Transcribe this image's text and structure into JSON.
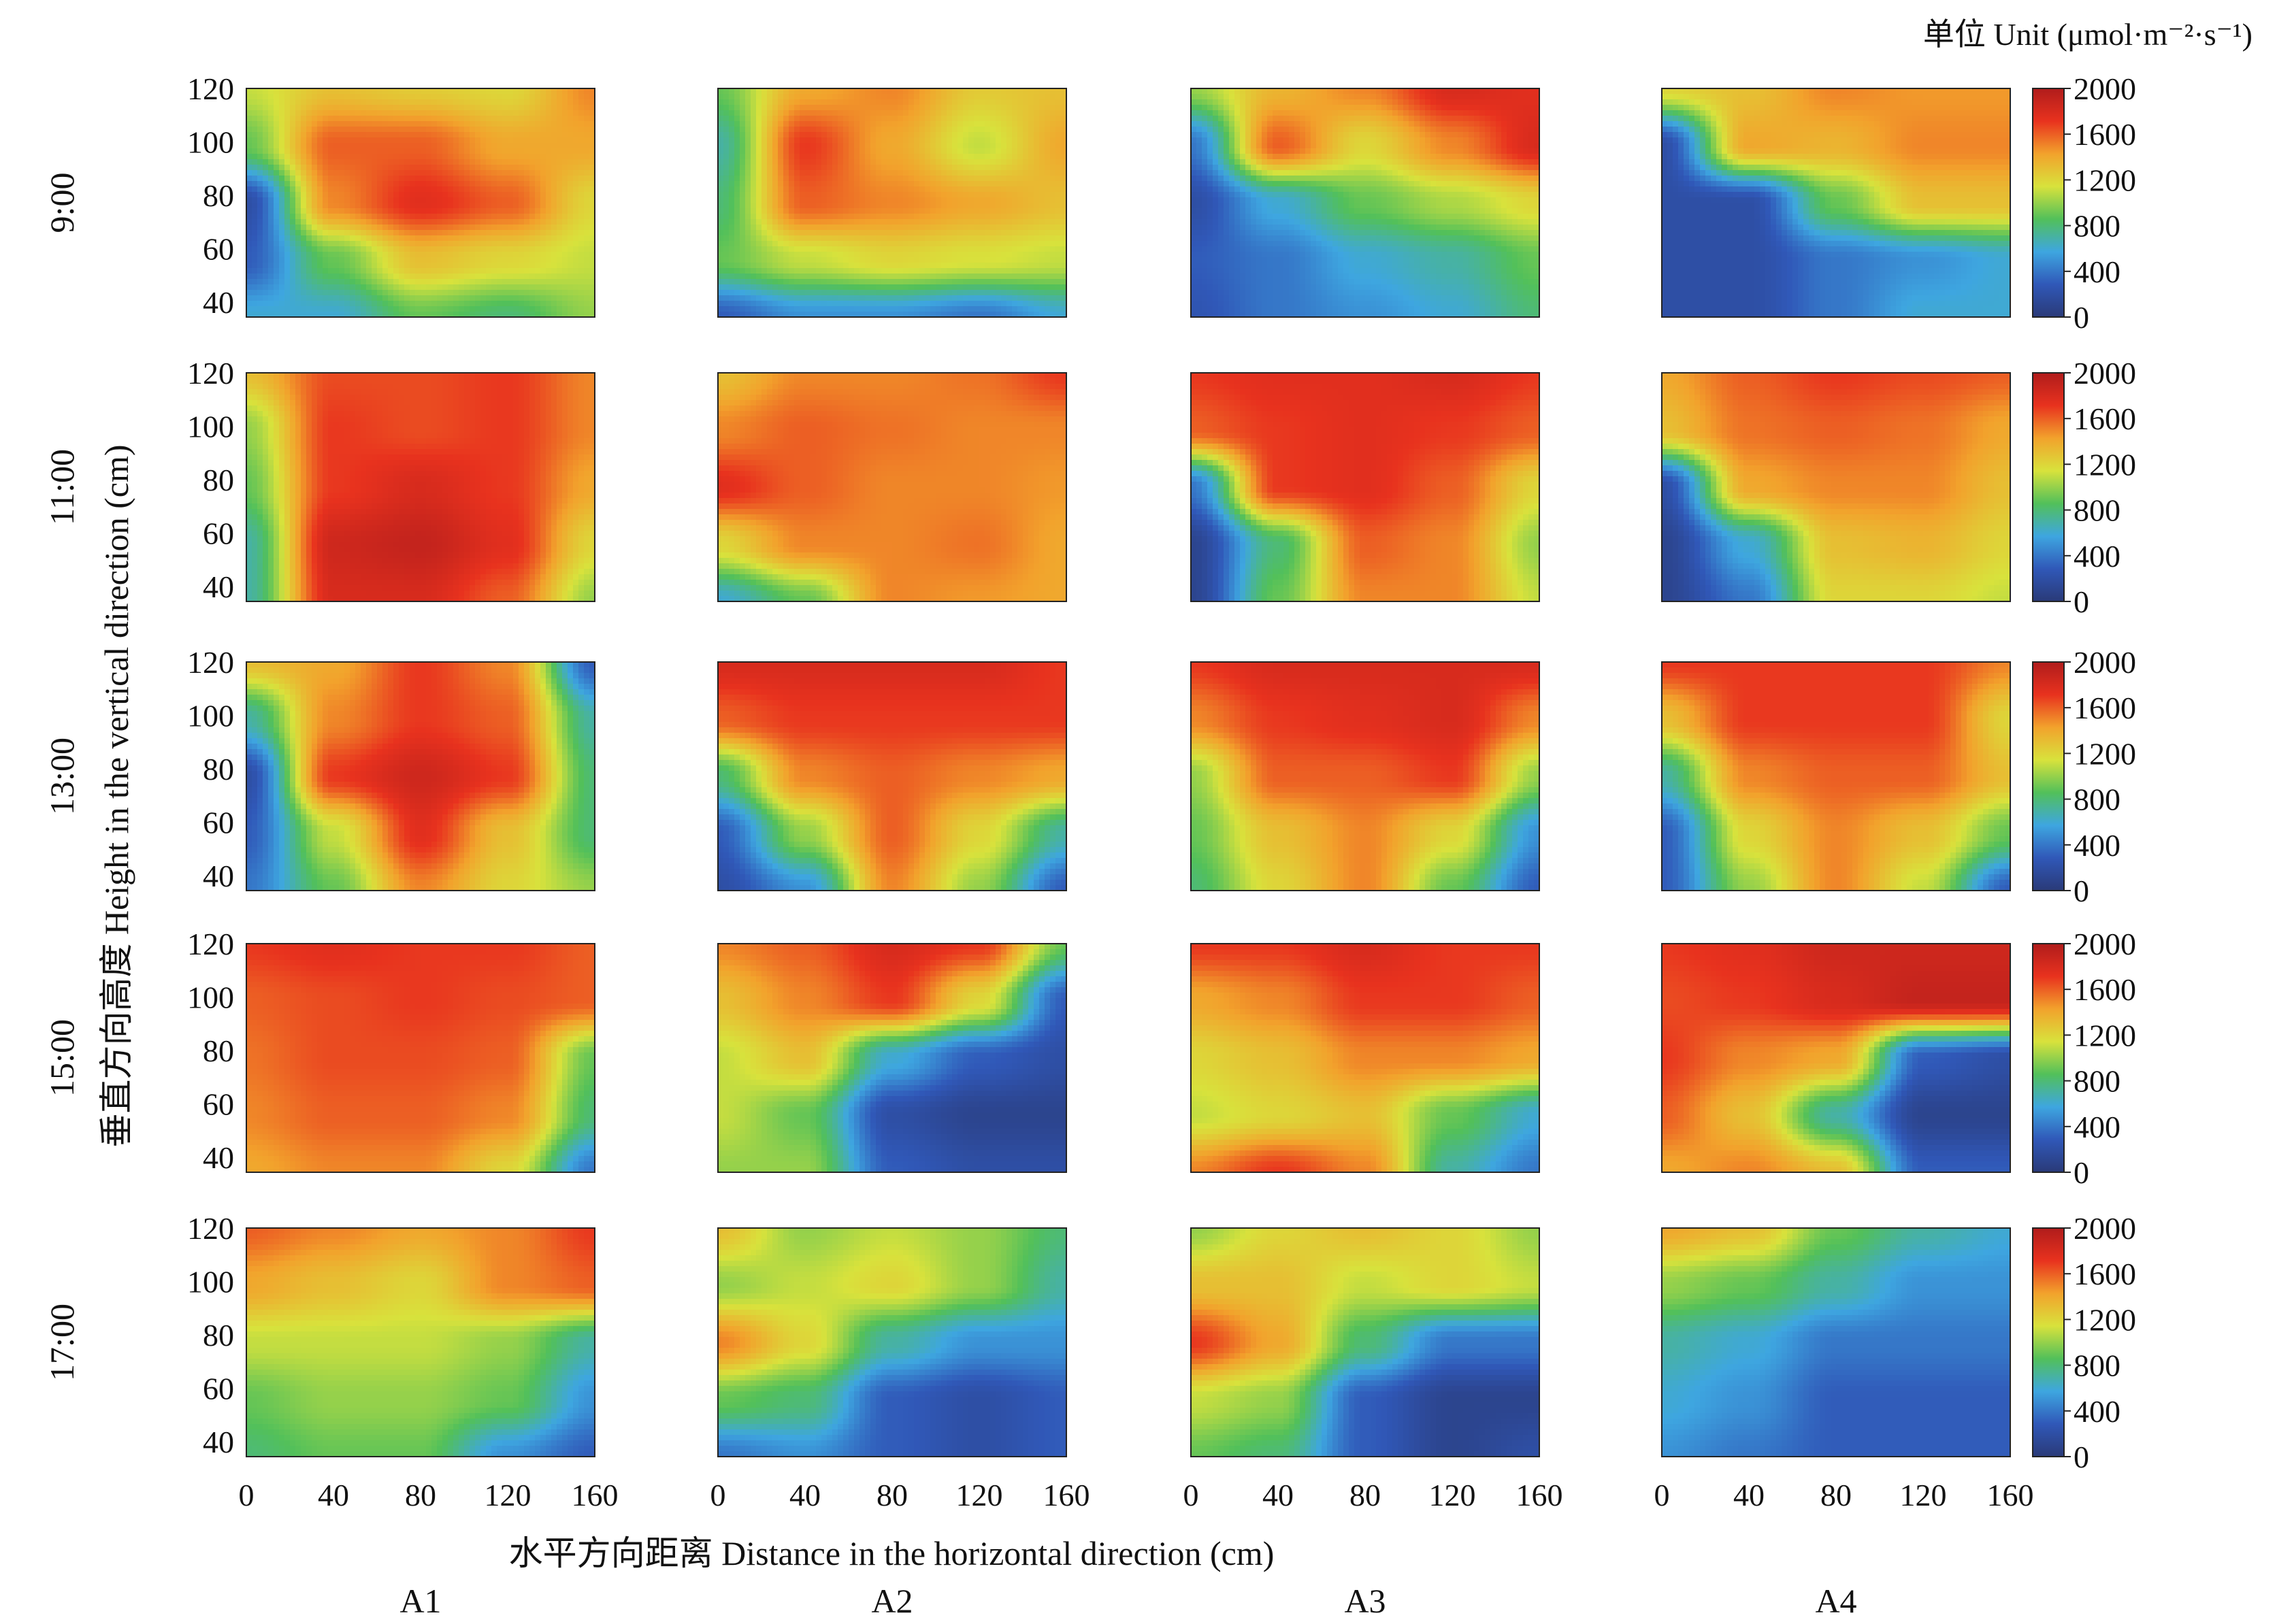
{
  "chart_data": {
    "type": "heatmap",
    "unit": "单位 Unit (μmol·m⁻²·s⁻¹)",
    "xlabel": "水平方向距离 Distance in the horizontal direction (cm)",
    "ylabel": "垂直方向高度 Height in the vertical direction (cm)",
    "x_ticks": [
      "0",
      "40",
      "80",
      "120",
      "160"
    ],
    "y_ticks": [
      "120",
      "100",
      "80",
      "60",
      "40"
    ],
    "xlim": [
      0,
      160
    ],
    "ylim": [
      36,
      120
    ],
    "colorbar_ticks": [
      "2000",
      "1600",
      "1200",
      "800",
      "400",
      "0"
    ],
    "colorbar_range": [
      0,
      2000
    ],
    "colorbar_colors": [
      "#2a3a78",
      "#3058b8",
      "#3ea6e0",
      "#52c05a",
      "#d8e23c",
      "#f2a22c",
      "#e8321e",
      "#b01c1c"
    ],
    "columns": [
      "A1",
      "A2",
      "A3",
      "A4"
    ],
    "rows": [
      "9:00",
      "11:00",
      "13:00",
      "15:00",
      "17:00"
    ],
    "grid_x": [
      0,
      40,
      80,
      120,
      160
    ],
    "grid_y": [
      120,
      100,
      80,
      60,
      40
    ],
    "panels": [
      [
        {
          "values": [
            [
              1100,
              1300,
              1250,
              1200,
              1500
            ],
            [
              900,
              1600,
              1600,
              1400,
              1400
            ],
            [
              200,
              1500,
              1750,
              1600,
              1200
            ],
            [
              300,
              900,
              1300,
              1200,
              1100
            ],
            [
              600,
              600,
              900,
              800,
              1000
            ]
          ]
        },
        {
          "values": [
            [
              900,
              1400,
              1500,
              1250,
              1300
            ],
            [
              700,
              1700,
              1400,
              1100,
              1400
            ],
            [
              800,
              1600,
              1500,
              1400,
              1300
            ],
            [
              900,
              1100,
              1200,
              1150,
              1100
            ],
            [
              300,
              500,
              500,
              400,
              600
            ]
          ]
        },
        {
          "values": [
            [
              1000,
              1350,
              1500,
              1800,
              1750
            ],
            [
              400,
              1600,
              1200,
              1500,
              1800
            ],
            [
              200,
              600,
              900,
              1050,
              1200
            ],
            [
              300,
              400,
              600,
              700,
              900
            ],
            [
              250,
              400,
              500,
              600,
              800
            ]
          ]
        },
        {
          "values": [
            [
              1200,
              1300,
              1500,
              1450,
              1450
            ],
            [
              200,
              1400,
              1350,
              1500,
              1500
            ],
            [
              200,
              200,
              900,
              1300,
              1300
            ],
            [
              200,
              200,
              400,
              500,
              600
            ],
            [
              200,
              200,
              400,
              600,
              600
            ]
          ]
        }
      ],
      [
        {
          "values": [
            [
              1300,
              1650,
              1650,
              1700,
              1500
            ],
            [
              1000,
              1700,
              1650,
              1700,
              1500
            ],
            [
              900,
              1700,
              1800,
              1700,
              1400
            ],
            [
              700,
              1850,
              1900,
              1750,
              1200
            ],
            [
              700,
              1800,
              1800,
              1600,
              1000
            ]
          ]
        },
        {
          "values": [
            [
              1300,
              1500,
              1500,
              1550,
              1700
            ],
            [
              1500,
              1600,
              1550,
              1500,
              1500
            ],
            [
              1750,
              1600,
              1500,
              1500,
              1450
            ],
            [
              1200,
              1500,
              1500,
              1550,
              1400
            ],
            [
              600,
              900,
              1500,
              1450,
              1400
            ]
          ]
        },
        {
          "values": [
            [
              1700,
              1750,
              1750,
              1800,
              1700
            ],
            [
              1600,
              1700,
              1750,
              1700,
              1600
            ],
            [
              400,
              1700,
              1750,
              1600,
              1200
            ],
            [
              100,
              800,
              1600,
              1500,
              1000
            ],
            [
              100,
              900,
              1500,
              1500,
              1100
            ]
          ]
        },
        {
          "values": [
            [
              1400,
              1600,
              1700,
              1650,
              1600
            ],
            [
              1300,
              1550,
              1600,
              1550,
              1400
            ],
            [
              200,
              1400,
              1500,
              1500,
              1300
            ],
            [
              100,
              600,
              1300,
              1350,
              1200
            ],
            [
              100,
              400,
              1200,
              1200,
              1100
            ]
          ]
        }
      ],
      [
        {
          "values": [
            [
              1300,
              1400,
              1700,
              1500,
              300
            ],
            [
              700,
              1500,
              1700,
              1600,
              700
            ],
            [
              200,
              1700,
              1850,
              1700,
              800
            ],
            [
              300,
              1100,
              1750,
              1300,
              800
            ],
            [
              400,
              900,
              1500,
              1200,
              1000
            ]
          ]
        },
        {
          "values": [
            [
              1800,
              1800,
              1800,
              1800,
              1700
            ],
            [
              1600,
              1700,
              1700,
              1700,
              1700
            ],
            [
              800,
              1500,
              1600,
              1500,
              1400
            ],
            [
              300,
              1000,
              1600,
              1200,
              700
            ],
            [
              200,
              500,
              1500,
              1000,
              300
            ]
          ]
        },
        {
          "values": [
            [
              1700,
              1800,
              1800,
              1800,
              1800
            ],
            [
              1500,
              1700,
              1750,
              1800,
              1500
            ],
            [
              1000,
              1600,
              1600,
              1700,
              1000
            ],
            [
              900,
              1300,
              1500,
              1200,
              500
            ],
            [
              800,
              1200,
              1500,
              900,
              300
            ]
          ]
        },
        {
          "values": [
            [
              1700,
              1700,
              1700,
              1700,
              1500
            ],
            [
              1300,
              1700,
              1700,
              1700,
              1200
            ],
            [
              700,
              1500,
              1600,
              1600,
              1300
            ],
            [
              300,
              1200,
              1500,
              1300,
              900
            ],
            [
              300,
              1000,
              1500,
              1100,
              300
            ]
          ]
        }
      ],
      [
        {
          "values": [
            [
              1700,
              1750,
              1700,
              1700,
              1600
            ],
            [
              1600,
              1650,
              1700,
              1650,
              1600
            ],
            [
              1550,
              1650,
              1650,
              1600,
              900
            ],
            [
              1500,
              1600,
              1600,
              1500,
              800
            ],
            [
              1400,
              1500,
              1500,
              1200,
              400
            ]
          ]
        },
        {
          "values": [
            [
              1500,
              1600,
              1800,
              1700,
              900
            ],
            [
              1300,
              1500,
              1700,
              1200,
              300
            ],
            [
              1100,
              1300,
              600,
              300,
              200
            ],
            [
              1100,
              900,
              200,
              100,
              100
            ],
            [
              1000,
              1000,
              300,
              200,
              200
            ]
          ]
        },
        {
          "values": [
            [
              1700,
              1700,
              1800,
              1700,
              1700
            ],
            [
              1400,
              1500,
              1700,
              1700,
              1600
            ],
            [
              1200,
              1300,
              1500,
              1500,
              1400
            ],
            [
              1100,
              1200,
              1300,
              900,
              600
            ],
            [
              1500,
              1700,
              1500,
              700,
              400
            ]
          ]
        },
        {
          "values": [
            [
              1700,
              1750,
              1850,
              1850,
              1850
            ],
            [
              1650,
              1700,
              1800,
              1900,
              1900
            ],
            [
              1700,
              1500,
              1400,
              300,
              200
            ],
            [
              1600,
              1300,
              700,
              100,
              100
            ],
            [
              1400,
              1500,
              1300,
              300,
              300
            ]
          ]
        }
      ],
      [
        {
          "values": [
            [
              1600,
              1500,
              1400,
              1500,
              1700
            ],
            [
              1400,
              1300,
              1200,
              1500,
              1600
            ],
            [
              1100,
              1100,
              1100,
              1000,
              700
            ],
            [
              900,
              1000,
              1000,
              900,
              500
            ],
            [
              800,
              900,
              900,
              500,
              300
            ]
          ]
        },
        {
          "values": [
            [
              1300,
              1000,
              1100,
              1000,
              800
            ],
            [
              1000,
              1100,
              1200,
              1000,
              700
            ],
            [
              1500,
              1200,
              700,
              500,
              500
            ],
            [
              900,
              800,
              300,
              200,
              300
            ],
            [
              400,
              500,
              300,
              200,
              300
            ]
          ]
        },
        {
          "values": [
            [
              1000,
              1200,
              1300,
              1200,
              1000
            ],
            [
              1300,
              1300,
              1100,
              1200,
              1100
            ],
            [
              1700,
              1400,
              800,
              400,
              400
            ],
            [
              1100,
              1000,
              300,
              100,
              100
            ],
            [
              900,
              800,
              300,
              100,
              200
            ]
          ]
        },
        {
          "values": [
            [
              1400,
              1300,
              900,
              700,
              600
            ],
            [
              1000,
              900,
              700,
              500,
              500
            ],
            [
              700,
              600,
              400,
              400,
              400
            ],
            [
              600,
              500,
              300,
              300,
              300
            ],
            [
              500,
              400,
              300,
              300,
              300
            ]
          ]
        }
      ]
    ]
  }
}
